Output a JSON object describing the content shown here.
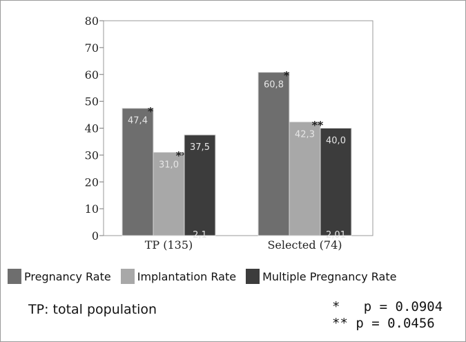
{
  "chart_data": {
    "type": "bar",
    "categories": [
      "TP (135)",
      "Selected (74)"
    ],
    "series": [
      {
        "name": "Pregnancy Rate",
        "color": "#6e6e6e",
        "values": [
          47.4,
          60.8
        ],
        "labels": [
          "47,4",
          "60,8"
        ],
        "marks": [
          "*",
          "*"
        ]
      },
      {
        "name": "Implantation Rate",
        "color": "#a8a8a8",
        "values": [
          31.0,
          42.3
        ],
        "labels": [
          "31,0",
          "42,3"
        ],
        "marks": [
          "**",
          "**"
        ]
      },
      {
        "name": "Multiple Pregnancy Rate",
        "color": "#3c3c3c",
        "values": [
          37.5,
          40.0
        ],
        "labels": [
          "37,5",
          "40,0"
        ],
        "marks": [
          "",
          ""
        ]
      }
    ],
    "extra_labels": [
      "2,1",
      "2,01"
    ],
    "yticks": [
      0,
      10,
      20,
      30,
      40,
      50,
      60,
      70,
      80
    ],
    "ylim": [
      0,
      80
    ],
    "grid": false,
    "legend": "bottom"
  },
  "notes": {
    "population": "TP: total population",
    "p_single": "*   p = 0.0904",
    "p_double": "** p = 0.0456"
  }
}
